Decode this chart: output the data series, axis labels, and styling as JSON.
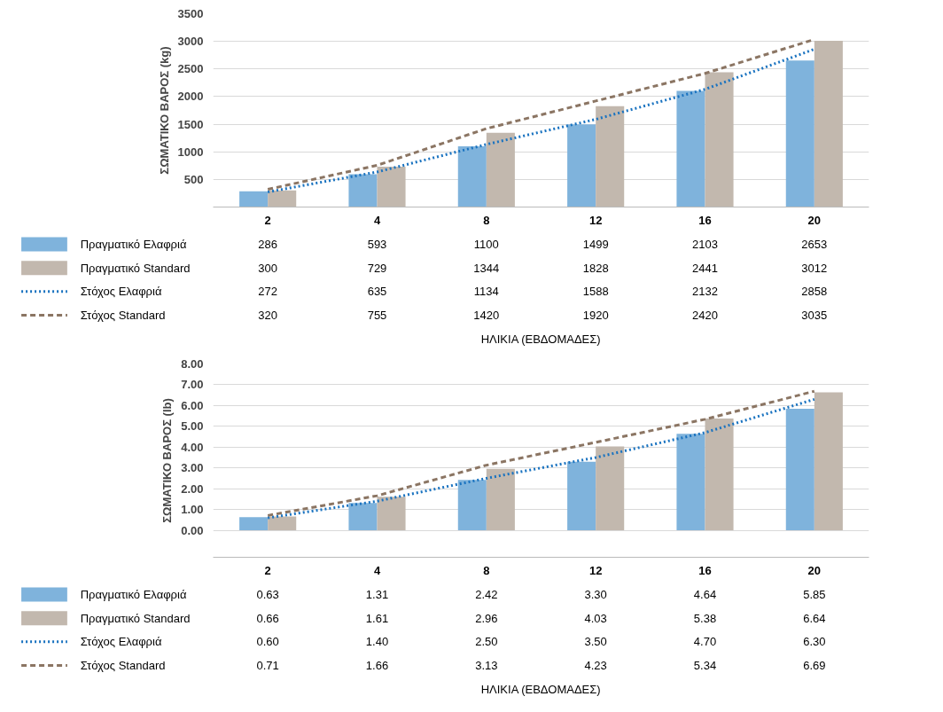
{
  "chart_data": [
    {
      "type": "bar",
      "categories": [
        "2",
        "4",
        "8",
        "12",
        "16",
        "20"
      ],
      "ylabel": "ΣΩΜΑΤΙΚΟ ΒΑΡΟΣ (kg)",
      "xlabel": "ΗΛΙΚΙΑ (ΕΒΔΟΜΑΔΕΣ)",
      "ylim": [
        0,
        3500
      ],
      "yticks": [
        500,
        1000,
        1500,
        2000,
        2500,
        3000,
        3500
      ],
      "grid": "y",
      "legend": "bottom",
      "series": [
        {
          "name": "Πραγματικό Ελαφριά",
          "type": "bar",
          "color": "#7fb3dc",
          "values": [
            286,
            593,
            1100,
            1499,
            2103,
            2653
          ],
          "value_labels": [
            "286",
            "593",
            "1100",
            "1499",
            "2103",
            "2653"
          ]
        },
        {
          "name": "Πραγματικό Standard",
          "type": "bar",
          "color": "#c2b8ae",
          "values": [
            300,
            729,
            1344,
            1828,
            2441,
            3012
          ],
          "value_labels": [
            "300",
            "729",
            "1344",
            "1828",
            "2441",
            "3012"
          ]
        },
        {
          "name": "Στόχος Ελαφριά",
          "type": "line",
          "line_style": "dotted",
          "color": "#1a73c0",
          "values": [
            272,
            635,
            1134,
            1588,
            2132,
            2858
          ],
          "value_labels": [
            "272",
            "635",
            "1134",
            "1588",
            "2132",
            "2858"
          ]
        },
        {
          "name": "Στόχος Standard",
          "type": "line",
          "line_style": "dashed",
          "color": "#8b7563",
          "values": [
            320,
            755,
            1420,
            1920,
            2420,
            3035
          ],
          "value_labels": [
            "320",
            "755",
            "1420",
            "1920",
            "2420",
            "3035"
          ]
        }
      ]
    },
    {
      "type": "bar",
      "categories": [
        "2",
        "4",
        "8",
        "12",
        "16",
        "20"
      ],
      "ylabel": "ΣΩΜΑΤΙΚΟ ΒΑΡΟΣ (lb)",
      "xlabel": "ΗΛΙΚΙΑ (ΕΒΔΟΜΑΔΕΣ)",
      "ylim": [
        -1.3,
        8
      ],
      "yticks": [
        {
          "value": 0,
          "label": "0.00"
        },
        {
          "value": 1,
          "label": "1.00"
        },
        {
          "value": 2,
          "label": "2.00"
        },
        {
          "value": 3,
          "label": "3.00"
        },
        {
          "value": 4,
          "label": "4.00"
        },
        {
          "value": 5,
          "label": "5.00"
        },
        {
          "value": 6,
          "label": "6.00"
        },
        {
          "value": 7,
          "label": "7.00"
        },
        {
          "value": 8,
          "label": "8.00"
        }
      ],
      "grid": "y",
      "legend": "bottom",
      "series": [
        {
          "name": "Πραγματικό Ελαφριά",
          "type": "bar",
          "color": "#7fb3dc",
          "values": [
            0.63,
            1.31,
            2.42,
            3.3,
            4.64,
            5.85
          ],
          "value_labels": [
            "0.63",
            "1.31",
            "2.42",
            "3.30",
            "4.64",
            "5.85"
          ]
        },
        {
          "name": "Πραγματικό Standard",
          "type": "bar",
          "color": "#c2b8ae",
          "values": [
            0.66,
            1.61,
            2.96,
            4.03,
            5.38,
            6.64
          ],
          "value_labels": [
            "0.66",
            "1.61",
            "2.96",
            "4.03",
            "5.38",
            "6.64"
          ]
        },
        {
          "name": "Στόχος Ελαφριά",
          "type": "line",
          "line_style": "dotted",
          "color": "#1a73c0",
          "values": [
            0.6,
            1.4,
            2.5,
            3.5,
            4.7,
            6.3
          ],
          "value_labels": [
            "0.60",
            "1.40",
            "2.50",
            "3.50",
            "4.70",
            "6.30"
          ]
        },
        {
          "name": "Στόχος Standard",
          "type": "line",
          "line_style": "dashed",
          "color": "#8b7563",
          "values": [
            0.71,
            1.66,
            3.13,
            4.23,
            5.34,
            6.69
          ],
          "value_labels": [
            "0.71",
            "1.66",
            "3.13",
            "4.23",
            "5.34",
            "6.69"
          ]
        }
      ]
    }
  ]
}
